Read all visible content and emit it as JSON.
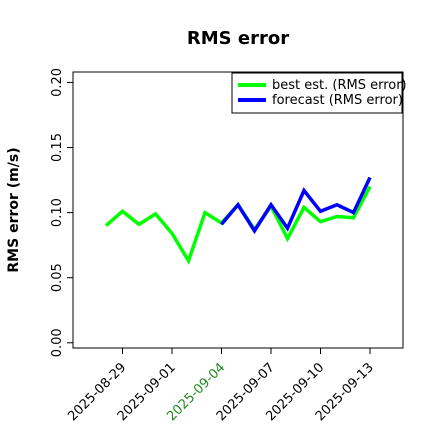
{
  "chart_data": {
    "type": "line",
    "title": "RMS error",
    "ylabel": "RMS error (m/s)",
    "x": [
      "2025-08-28",
      "2025-08-29",
      "2025-08-30",
      "2025-08-31",
      "2025-09-01",
      "2025-09-02",
      "2025-09-03",
      "2025-09-04",
      "2025-09-05",
      "2025-09-06",
      "2025-09-07",
      "2025-09-08",
      "2025-09-09",
      "2025-09-10",
      "2025-09-11",
      "2025-09-12",
      "2025-09-13"
    ],
    "series": [
      {
        "name": "best est. (RMS error)",
        "color": "#00ff00",
        "values": [
          0.09,
          0.101,
          0.091,
          0.099,
          0.084,
          0.063,
          0.1,
          0.092,
          0.106,
          0.087,
          0.105,
          0.08,
          0.104,
          0.093,
          0.097,
          0.096,
          0.12
        ]
      },
      {
        "name": "forecast (RMS error)",
        "color": "#0000ff",
        "values": [
          null,
          null,
          null,
          null,
          null,
          null,
          null,
          0.091,
          0.106,
          0.086,
          0.106,
          0.088,
          0.117,
          0.101,
          0.106,
          0.1,
          0.127
        ]
      }
    ],
    "xlim": [
      "2025-08-26",
      "2025-09-15"
    ],
    "xticks": [
      "2025-08-29",
      "2025-09-01",
      "2025-09-04",
      "2025-09-07",
      "2025-09-10",
      "2025-09-13"
    ],
    "xtick_colors": [
      "#000000",
      "#000000",
      "#228b22",
      "#000000",
      "#000000",
      "#000000"
    ],
    "ylim": [
      -0.004,
      0.208
    ],
    "yticks": [
      {
        "value": 0,
        "label": "0.00"
      },
      {
        "value": 0.05,
        "label": "0.05"
      },
      {
        "value": 0.1,
        "label": "0.10"
      },
      {
        "value": 0.15,
        "label": "0.15"
      },
      {
        "value": 0.2,
        "label": "0.20"
      }
    ],
    "legend": "upper right",
    "grid": false
  }
}
